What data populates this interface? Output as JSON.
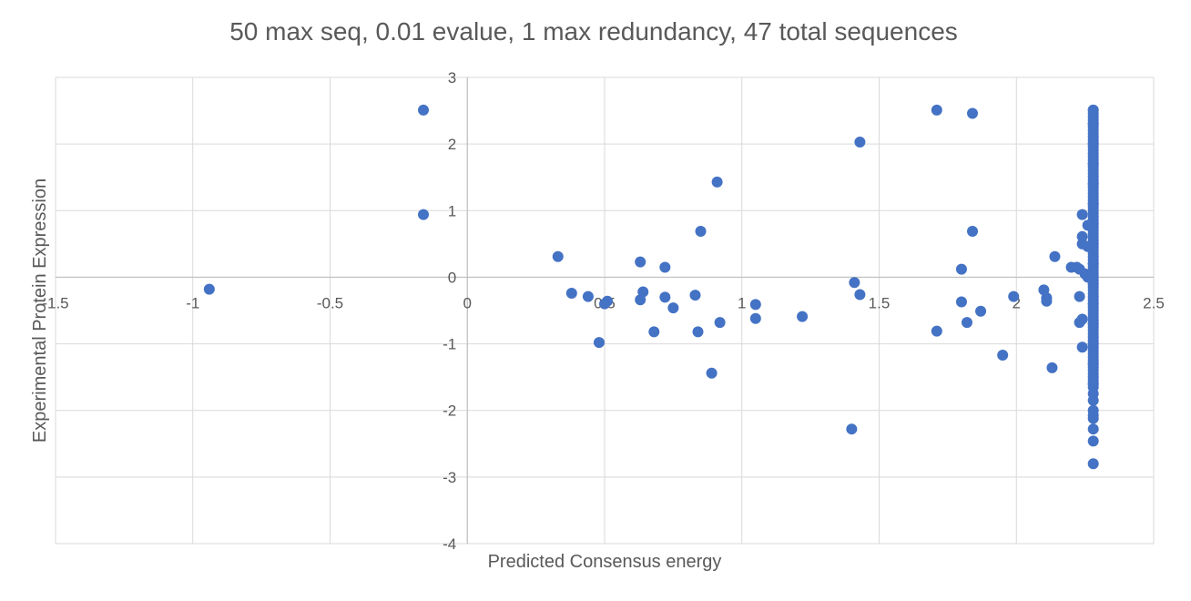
{
  "chart_data": {
    "type": "scatter",
    "title": "50 max seq, 0.01 evalue, 1 max redundancy, 47 total sequences",
    "xlabel": "Predicted Consensus energy",
    "ylabel": "Experimental Protein Expression",
    "xlim": [
      -1.5,
      2.5
    ],
    "ylim": [
      -4,
      3
    ],
    "x_ticks": [
      -1.5,
      -1,
      -0.5,
      0,
      0.5,
      1,
      1.5,
      2,
      2.5
    ],
    "y_ticks": [
      -4,
      -3,
      -2,
      -1,
      0,
      1,
      2,
      3
    ],
    "grid": true,
    "marker_color": "#4472C4",
    "series": [
      {
        "points": [
          [
            -0.94,
            -0.18
          ],
          [
            -0.16,
            2.51
          ],
          [
            -0.16,
            0.94
          ],
          [
            0.33,
            0.31
          ],
          [
            0.38,
            -0.24
          ],
          [
            0.44,
            -0.29
          ],
          [
            0.48,
            -0.98
          ],
          [
            0.5,
            -0.4
          ],
          [
            0.51,
            -0.36
          ],
          [
            0.63,
            0.23
          ],
          [
            0.63,
            -0.34
          ],
          [
            0.64,
            -0.22
          ],
          [
            0.68,
            -0.82
          ],
          [
            0.72,
            0.15
          ],
          [
            0.72,
            -0.3
          ],
          [
            0.75,
            -0.46
          ],
          [
            0.83,
            -0.27
          ],
          [
            0.84,
            -0.82
          ],
          [
            0.85,
            0.69
          ],
          [
            0.89,
            -1.44
          ],
          [
            0.91,
            1.43
          ],
          [
            0.92,
            -0.68
          ],
          [
            1.05,
            -0.41
          ],
          [
            1.05,
            -0.62
          ],
          [
            1.22,
            -0.59
          ],
          [
            1.4,
            -2.28
          ],
          [
            1.41,
            -0.08
          ],
          [
            1.43,
            -0.26
          ],
          [
            1.43,
            2.03
          ],
          [
            1.71,
            2.51
          ],
          [
            1.71,
            -0.81
          ],
          [
            1.8,
            0.12
          ],
          [
            1.8,
            -0.37
          ],
          [
            1.82,
            -0.68
          ],
          [
            1.84,
            2.46
          ],
          [
            1.84,
            0.69
          ],
          [
            1.87,
            -0.51
          ],
          [
            1.95,
            -1.17
          ],
          [
            1.99,
            -0.29
          ],
          [
            2.1,
            -0.19
          ],
          [
            2.11,
            -0.31
          ],
          [
            2.11,
            -0.36
          ],
          [
            2.13,
            -1.36
          ],
          [
            2.14,
            0.31
          ],
          [
            2.2,
            0.15
          ],
          [
            2.22,
            0.15
          ],
          [
            2.23,
            -0.29
          ],
          [
            2.23,
            -0.68
          ],
          [
            2.23,
            0.12
          ],
          [
            2.24,
            0.94
          ],
          [
            2.24,
            0.61
          ],
          [
            2.24,
            0.5
          ],
          [
            2.24,
            -0.63
          ],
          [
            2.24,
            -1.05
          ],
          [
            2.25,
            0.05
          ],
          [
            2.26,
            0.78
          ],
          [
            2.26,
            0.46
          ],
          [
            2.26,
            0.0
          ],
          [
            2.28,
            2.51
          ],
          [
            2.28,
            2.3
          ],
          [
            2.28,
            2.0
          ],
          [
            2.28,
            1.7
          ],
          [
            2.28,
            1.4
          ],
          [
            2.28,
            1.1
          ],
          [
            2.28,
            0.8
          ],
          [
            2.28,
            0.5
          ],
          [
            2.28,
            0.2
          ],
          [
            2.28,
            -0.1
          ],
          [
            2.28,
            -0.4
          ],
          [
            2.28,
            -0.7
          ],
          [
            2.28,
            -1.0
          ],
          [
            2.28,
            -1.3
          ],
          [
            2.28,
            -1.6
          ],
          [
            2.28,
            -1.75
          ],
          [
            2.28,
            -1.85
          ],
          [
            2.28,
            -2.0
          ],
          [
            2.28,
            -2.07
          ],
          [
            2.28,
            -2.12
          ],
          [
            2.28,
            -2.28
          ],
          [
            2.28,
            -2.46
          ],
          [
            2.28,
            -2.8
          ]
        ],
        "dense_run": {
          "x": 2.28,
          "y_from": -1.65,
          "y_to": 2.51
        }
      }
    ]
  }
}
